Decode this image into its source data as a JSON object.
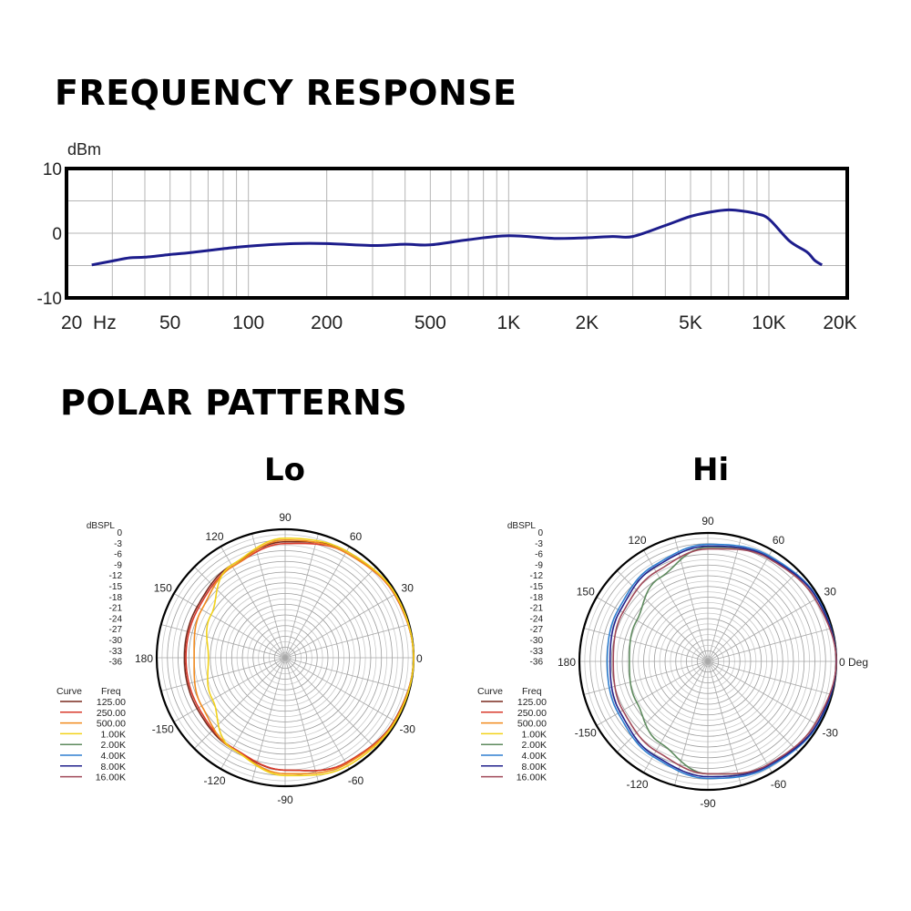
{
  "titles": {
    "frequency_response": "FREQUENCY RESPONSE",
    "polar_patterns": "POLAR PATTERNS",
    "lo": "Lo",
    "hi": "Hi"
  },
  "colors": {
    "response_line": "#1d1d8c",
    "frame": "#000000",
    "grid": "#b5b5b5",
    "polar_grid": "#aaaaaa",
    "125.00": "#7a2a1e",
    "250.00": "#d93a2b",
    "500.00": "#f08a1e",
    "1.00K": "#f2d21a",
    "2.00K": "#5e8a5e",
    "4.00K": "#2f7fd0",
    "8.00K": "#22228c",
    "16.00K": "#a04858"
  },
  "chart_data": [
    {
      "type": "line",
      "x_scale": "log",
      "ylabel": "dBm",
      "ylim": [
        -10,
        10
      ],
      "xlim": [
        20,
        20000
      ],
      "y_ticks": [
        "10",
        "0",
        "-10"
      ],
      "x_ticks": [
        {
          "label": "20  Hz",
          "value": 20
        },
        {
          "label": "50",
          "value": 50
        },
        {
          "label": "100",
          "value": 100
        },
        {
          "label": "200",
          "value": 200
        },
        {
          "label": "500",
          "value": 500
        },
        {
          "label": "1K",
          "value": 1000
        },
        {
          "label": "2K",
          "value": 2000
        },
        {
          "label": "5K",
          "value": 5000
        },
        {
          "label": "10K",
          "value": 10000
        },
        {
          "label": "20K",
          "value": 20000
        }
      ],
      "grid": true,
      "series": [
        {
          "x": [
            25,
            30,
            35,
            40,
            50,
            60,
            80,
            100,
            150,
            200,
            300,
            400,
            500,
            700,
            1000,
            1500,
            2000,
            2500,
            3000,
            4000,
            5000,
            6000,
            7000,
            8000,
            9000,
            10000,
            12000,
            14000,
            15000,
            16000
          ],
          "y": [
            -4.9,
            -4.3,
            -3.8,
            -3.7,
            -3.3,
            -3.0,
            -2.4,
            -2.0,
            -1.6,
            -1.6,
            -1.9,
            -1.7,
            -1.8,
            -1.0,
            -0.4,
            -0.8,
            -0.7,
            -0.5,
            -0.5,
            1.2,
            2.6,
            3.3,
            3.6,
            3.4,
            3.0,
            2.2,
            -1.2,
            -2.9,
            -4.2,
            -4.9
          ]
        }
      ]
    },
    {
      "type": "polar",
      "title": "Lo",
      "r_label": "dBSPL",
      "r_ticks": [
        "0",
        "-3",
        "-6",
        "-9",
        "-12",
        "-15",
        "-18",
        "-21",
        "-24",
        "-27",
        "-30",
        "-33",
        "-36"
      ],
      "angle_labels": [
        "90",
        "60",
        "30",
        "0",
        "-30",
        "-60",
        "-90",
        "-120",
        "-150",
        "180",
        "150",
        "120"
      ],
      "legend_header": {
        "curve": "Curve",
        "freq": "Freq"
      },
      "series": [
        {
          "name": "125.00",
          "angles": [
            0,
            30,
            60,
            90,
            120,
            150,
            180,
            210,
            240,
            270,
            300,
            330
          ],
          "values": [
            0,
            -0.5,
            -1.5,
            -3.5,
            -6,
            -7.5,
            -7.8,
            -7.5,
            -6.5,
            -4.5,
            -2.0,
            -0.7
          ]
        },
        {
          "name": "250.00",
          "angles": [
            0,
            30,
            60,
            90,
            120,
            150,
            180,
            210,
            240,
            270,
            300,
            330
          ],
          "values": [
            0,
            -0.6,
            -2.0,
            -4.0,
            -6.5,
            -8.0,
            -8.2,
            -8.0,
            -6.8,
            -4.5,
            -2.0,
            -0.6
          ]
        },
        {
          "name": "500.00",
          "angles": [
            0,
            30,
            60,
            90,
            120,
            150,
            180,
            210,
            240,
            270,
            300,
            330
          ],
          "values": [
            0,
            -0.5,
            -2.0,
            -3.0,
            -6.5,
            -9.0,
            -10.5,
            -9.0,
            -6.5,
            -3.5,
            -1.6,
            -0.5
          ]
        },
        {
          "name": "1.00K",
          "angles": [
            0,
            30,
            60,
            90,
            120,
            150,
            180,
            210,
            240,
            270,
            300,
            330
          ],
          "values": [
            0,
            -0.3,
            -1.5,
            -2.5,
            -6.0,
            -12.0,
            -14.5,
            -12.5,
            -6.5,
            -3.0,
            -1.0,
            -0.3
          ]
        }
      ]
    },
    {
      "type": "polar",
      "title": "Hi",
      "r_label": "dBSPL",
      "r_ticks": [
        "0",
        "-3",
        "-6",
        "-9",
        "-12",
        "-15",
        "-18",
        "-21",
        "-24",
        "-27",
        "-30",
        "-33",
        "-36"
      ],
      "angle_labels": [
        "90",
        "60",
        "30",
        "0 Deg",
        "-30",
        "-60",
        "-90",
        "-120",
        "-150",
        "180",
        "150",
        "120"
      ],
      "legend_header": {
        "curve": "Curve",
        "freq": "Freq"
      },
      "series": [
        {
          "name": "2.00K",
          "angles": [
            0,
            30,
            60,
            90,
            120,
            150,
            180,
            210,
            240,
            270,
            300,
            330
          ],
          "values": [
            0,
            -0.6,
            -2.2,
            -4.0,
            -9.0,
            -13.0,
            -14.0,
            -13.0,
            -9.5,
            -4.5,
            -2.3,
            -0.7
          ]
        },
        {
          "name": "4.00K",
          "angles": [
            0,
            30,
            60,
            90,
            120,
            150,
            180,
            210,
            240,
            270,
            300,
            330
          ],
          "values": [
            0,
            -0.5,
            -1.8,
            -3.2,
            -5.2,
            -7.0,
            -7.8,
            -7.0,
            -5.2,
            -3.2,
            -1.8,
            -0.5
          ]
        },
        {
          "name": "8.00K",
          "angles": [
            0,
            30,
            60,
            90,
            120,
            150,
            180,
            210,
            240,
            270,
            300,
            330
          ],
          "values": [
            0,
            -0.7,
            -2.2,
            -3.7,
            -5.7,
            -7.6,
            -8.6,
            -7.6,
            -5.7,
            -3.7,
            -2.2,
            -0.7
          ]
        },
        {
          "name": "16.00K",
          "angles": [
            0,
            30,
            60,
            90,
            120,
            150,
            180,
            210,
            240,
            270,
            300,
            330
          ],
          "values": [
            0,
            -1.2,
            -2.5,
            -4.5,
            -7.0,
            -8.5,
            -9.5,
            -8.5,
            -7.0,
            -4.5,
            -2.5,
            -1.2
          ]
        }
      ]
    }
  ],
  "legend_freqs": [
    "125.00",
    "250.00",
    "500.00",
    "1.00K",
    "2.00K",
    "4.00K",
    "8.00K",
    "16.00K"
  ]
}
